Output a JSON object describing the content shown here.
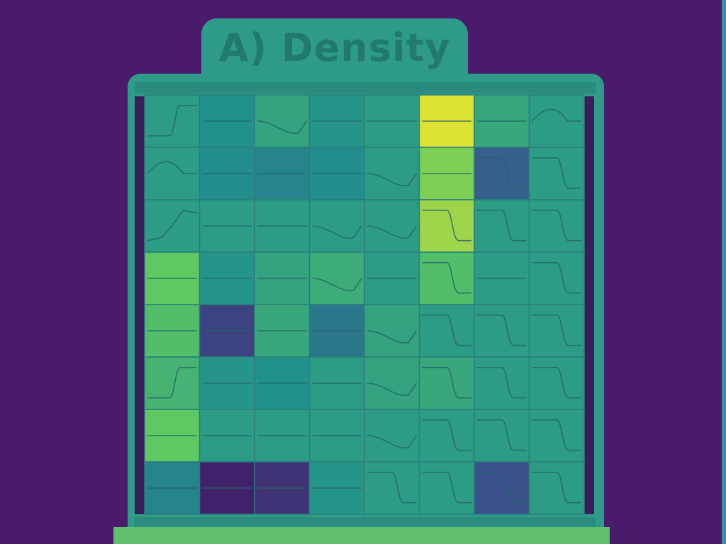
{
  "chart_data": {
    "type": "heatmap",
    "title": "A) Density",
    "rows": 8,
    "cols": 8,
    "grid": true,
    "cells": [
      [
        0.55,
        0.5,
        0.58,
        0.52,
        0.55,
        0.95,
        0.6,
        0.55
      ],
      [
        0.55,
        0.48,
        0.45,
        0.48,
        0.55,
        0.8,
        0.3,
        0.55
      ],
      [
        0.55,
        0.55,
        0.55,
        0.55,
        0.55,
        0.85,
        0.55,
        0.55
      ],
      [
        0.75,
        0.52,
        0.58,
        0.62,
        0.55,
        0.7,
        0.55,
        0.55
      ],
      [
        0.7,
        0.2,
        0.6,
        0.4,
        0.58,
        0.55,
        0.55,
        0.55
      ],
      [
        0.65,
        0.52,
        0.5,
        0.55,
        0.58,
        0.6,
        0.55,
        0.55
      ],
      [
        0.75,
        0.55,
        0.55,
        0.55,
        0.55,
        0.55,
        0.55,
        0.55
      ],
      [
        0.45,
        0.1,
        0.15,
        0.52,
        0.55,
        0.55,
        0.25,
        0.55
      ]
    ],
    "curves": [
      [
        "step-up",
        "flat",
        "bump-down",
        "flat",
        "flat",
        "flat",
        "flat",
        "bump"
      ],
      [
        "bump",
        "flat",
        "flat",
        "flat",
        "bump-down",
        "flat",
        "step-down",
        "step-down"
      ],
      [
        "rise",
        "flat",
        "flat",
        "bump-down",
        "bump-down",
        "step-down",
        "step-down",
        "step-down"
      ],
      [
        "flat",
        "flat",
        "flat",
        "bump-down",
        "flat",
        "step-down",
        "flat",
        "step-down"
      ],
      [
        "flat",
        "flat",
        "flat",
        "flat",
        "bump-down",
        "step-down",
        "step-down",
        "step-down"
      ],
      [
        "step-up",
        "flat",
        "flat",
        "flat",
        "bump-down",
        "step-down",
        "step-down",
        "step-down"
      ],
      [
        "flat",
        "flat",
        "flat",
        "flat",
        "bump-down",
        "step-down",
        "step-down",
        "step-down"
      ],
      [
        "flat",
        "flat",
        "flat",
        "flat",
        "step-down",
        "step-down",
        "step-down",
        "step-down"
      ]
    ],
    "colormap": [
      "#440154",
      "#3b528b",
      "#21918c",
      "#5ec962",
      "#fde725"
    ]
  },
  "colors": {
    "background": "#4a1a6b",
    "panel": "#2f9c8a",
    "frame": "#2a8b7e",
    "accent_edge": "#3e8ea8"
  }
}
